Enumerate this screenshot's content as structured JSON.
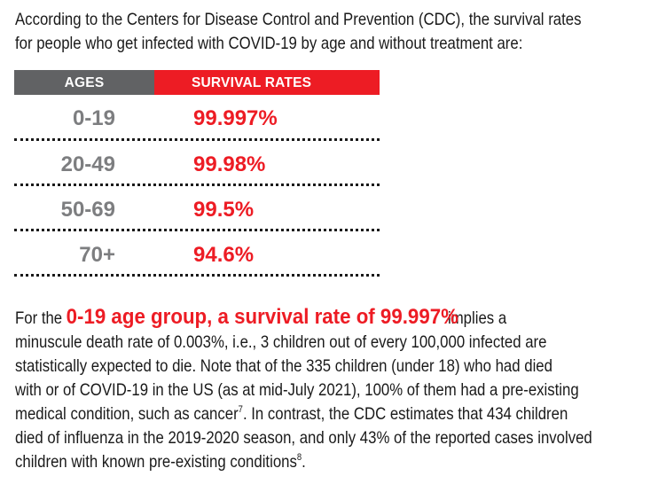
{
  "intro": {
    "lines": [
      "According to the Centers for Disease Control and Prevention (CDC), the survival rates",
      "for people who get infected with COVID-19 by age and without treatment are:"
    ]
  },
  "table": {
    "headers": {
      "ages": "AGES",
      "survival_rates": "SURVIVAL RATES"
    },
    "rows": [
      {
        "age": "0-19",
        "rate": "99.997%"
      },
      {
        "age": "20-49",
        "rate": "99.98%"
      },
      {
        "age": "50-69",
        "rate": "99.5%"
      },
      {
        "age": "70+",
        "rate": "94.6%"
      }
    ],
    "colors": {
      "header_gray": "#616264",
      "accent_red": "#ed1c24",
      "age_gray": "#7d7e80"
    }
  },
  "paragraph": {
    "lead": "For the",
    "highlight": "0-19 age group, a survival rate of 99.997%",
    "line1_tail": "implies a",
    "line2": "minuscule death rate of 0.003%, i.e., 3 children out of every 100,000 infected are",
    "line3": "statistically expected to die. Note that of the 335 children (under 18) who had died",
    "line4": "with or of COVID-19 in the US (as at mid-July 2021), 100% of them had a pre-existing",
    "line5_pre": "medical condition, such as cancer",
    "line5_sup": "7",
    "line5_post": ". In contrast, the CDC estimates that 434 children",
    "line6": "died of influenza in the 2019-2020 season, and only 43% of the reported cases involved",
    "line7_pre": "children with known pre-existing conditions",
    "line7_sup": "8",
    "line7_post": "."
  }
}
